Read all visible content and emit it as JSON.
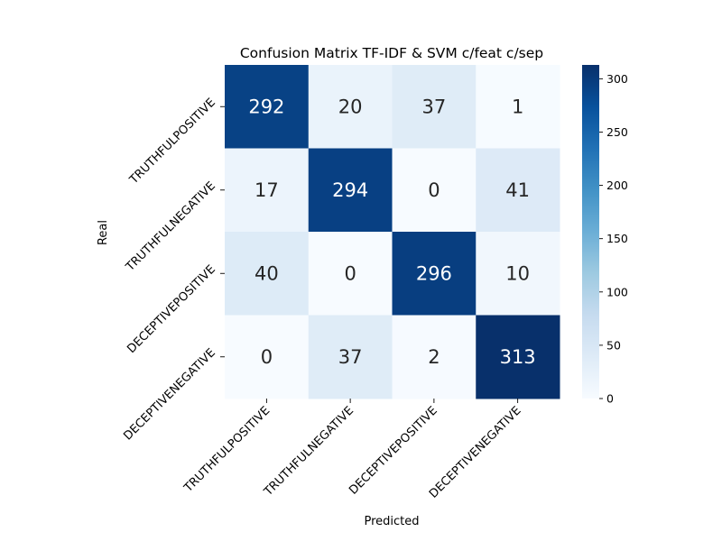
{
  "chart_data": {
    "type": "heatmap",
    "title": "Confusion Matrix TF-IDF & SVM c/feat c/sep",
    "xlabel": "Predicted",
    "ylabel": "Real",
    "x_categories": [
      "TRUTHFULPOSITIVE",
      "TRUTHFULNEGATIVE",
      "DECEPTIVEPOSITIVE",
      "DECEPTIVENEGATIVE"
    ],
    "y_categories": [
      "TRUTHFULPOSITIVE",
      "TRUTHFULNEGATIVE",
      "DECEPTIVEPOSITIVE",
      "DECEPTIVENEGATIVE"
    ],
    "matrix": [
      [
        292,
        20,
        37,
        1
      ],
      [
        17,
        294,
        0,
        41
      ],
      [
        40,
        0,
        296,
        10
      ],
      [
        0,
        37,
        2,
        313
      ]
    ],
    "colorbar": {
      "colormap": "Blues",
      "vmin": 0,
      "vmax": 313,
      "ticks": [
        0,
        50,
        100,
        150,
        200,
        250,
        300
      ]
    },
    "colors": {
      "low": "#f7fbff",
      "high": "#08306b"
    }
  }
}
